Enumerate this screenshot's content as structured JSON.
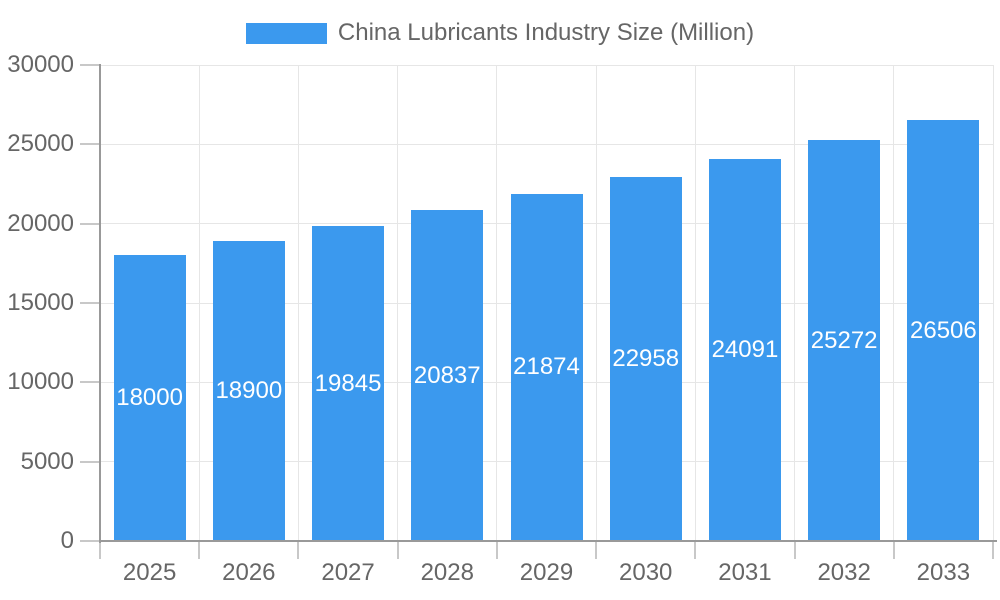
{
  "legend": {
    "label": "China Lubricants Industry Size (Million)"
  },
  "colors": {
    "bar": "#3B99EE",
    "axis_line": "#999999",
    "grid_line": "#E6E6E6",
    "tick_mark": "#C8C8C8",
    "axis_label_text": "#666666",
    "value_label_text": "#FFFFFF",
    "background": "#FFFFFF"
  },
  "chart_data": {
    "type": "bar",
    "title": "China Lubricants Industry Size (Million)",
    "series_name": "China Lubricants Industry Size (Million)",
    "categories": [
      "2025",
      "2026",
      "2027",
      "2028",
      "2029",
      "2030",
      "2031",
      "2032",
      "2033"
    ],
    "values": [
      18000,
      18900,
      19845,
      20837,
      21874,
      22958,
      24091,
      25272,
      26506
    ],
    "value_labels": [
      "18000",
      "18900",
      "19845",
      "20837",
      "21874",
      "22958",
      "24091",
      "25272",
      "26506"
    ],
    "xlabel": "",
    "ylabel": "",
    "ylim": [
      0,
      30000
    ],
    "ytick_interval": 5000,
    "ytick_labels": [
      "0",
      "5000",
      "10000",
      "15000",
      "20000",
      "25000",
      "30000"
    ],
    "grid": true,
    "grid_vertical": true,
    "legend_position": "top-center",
    "value_label_position": "inside-center"
  }
}
